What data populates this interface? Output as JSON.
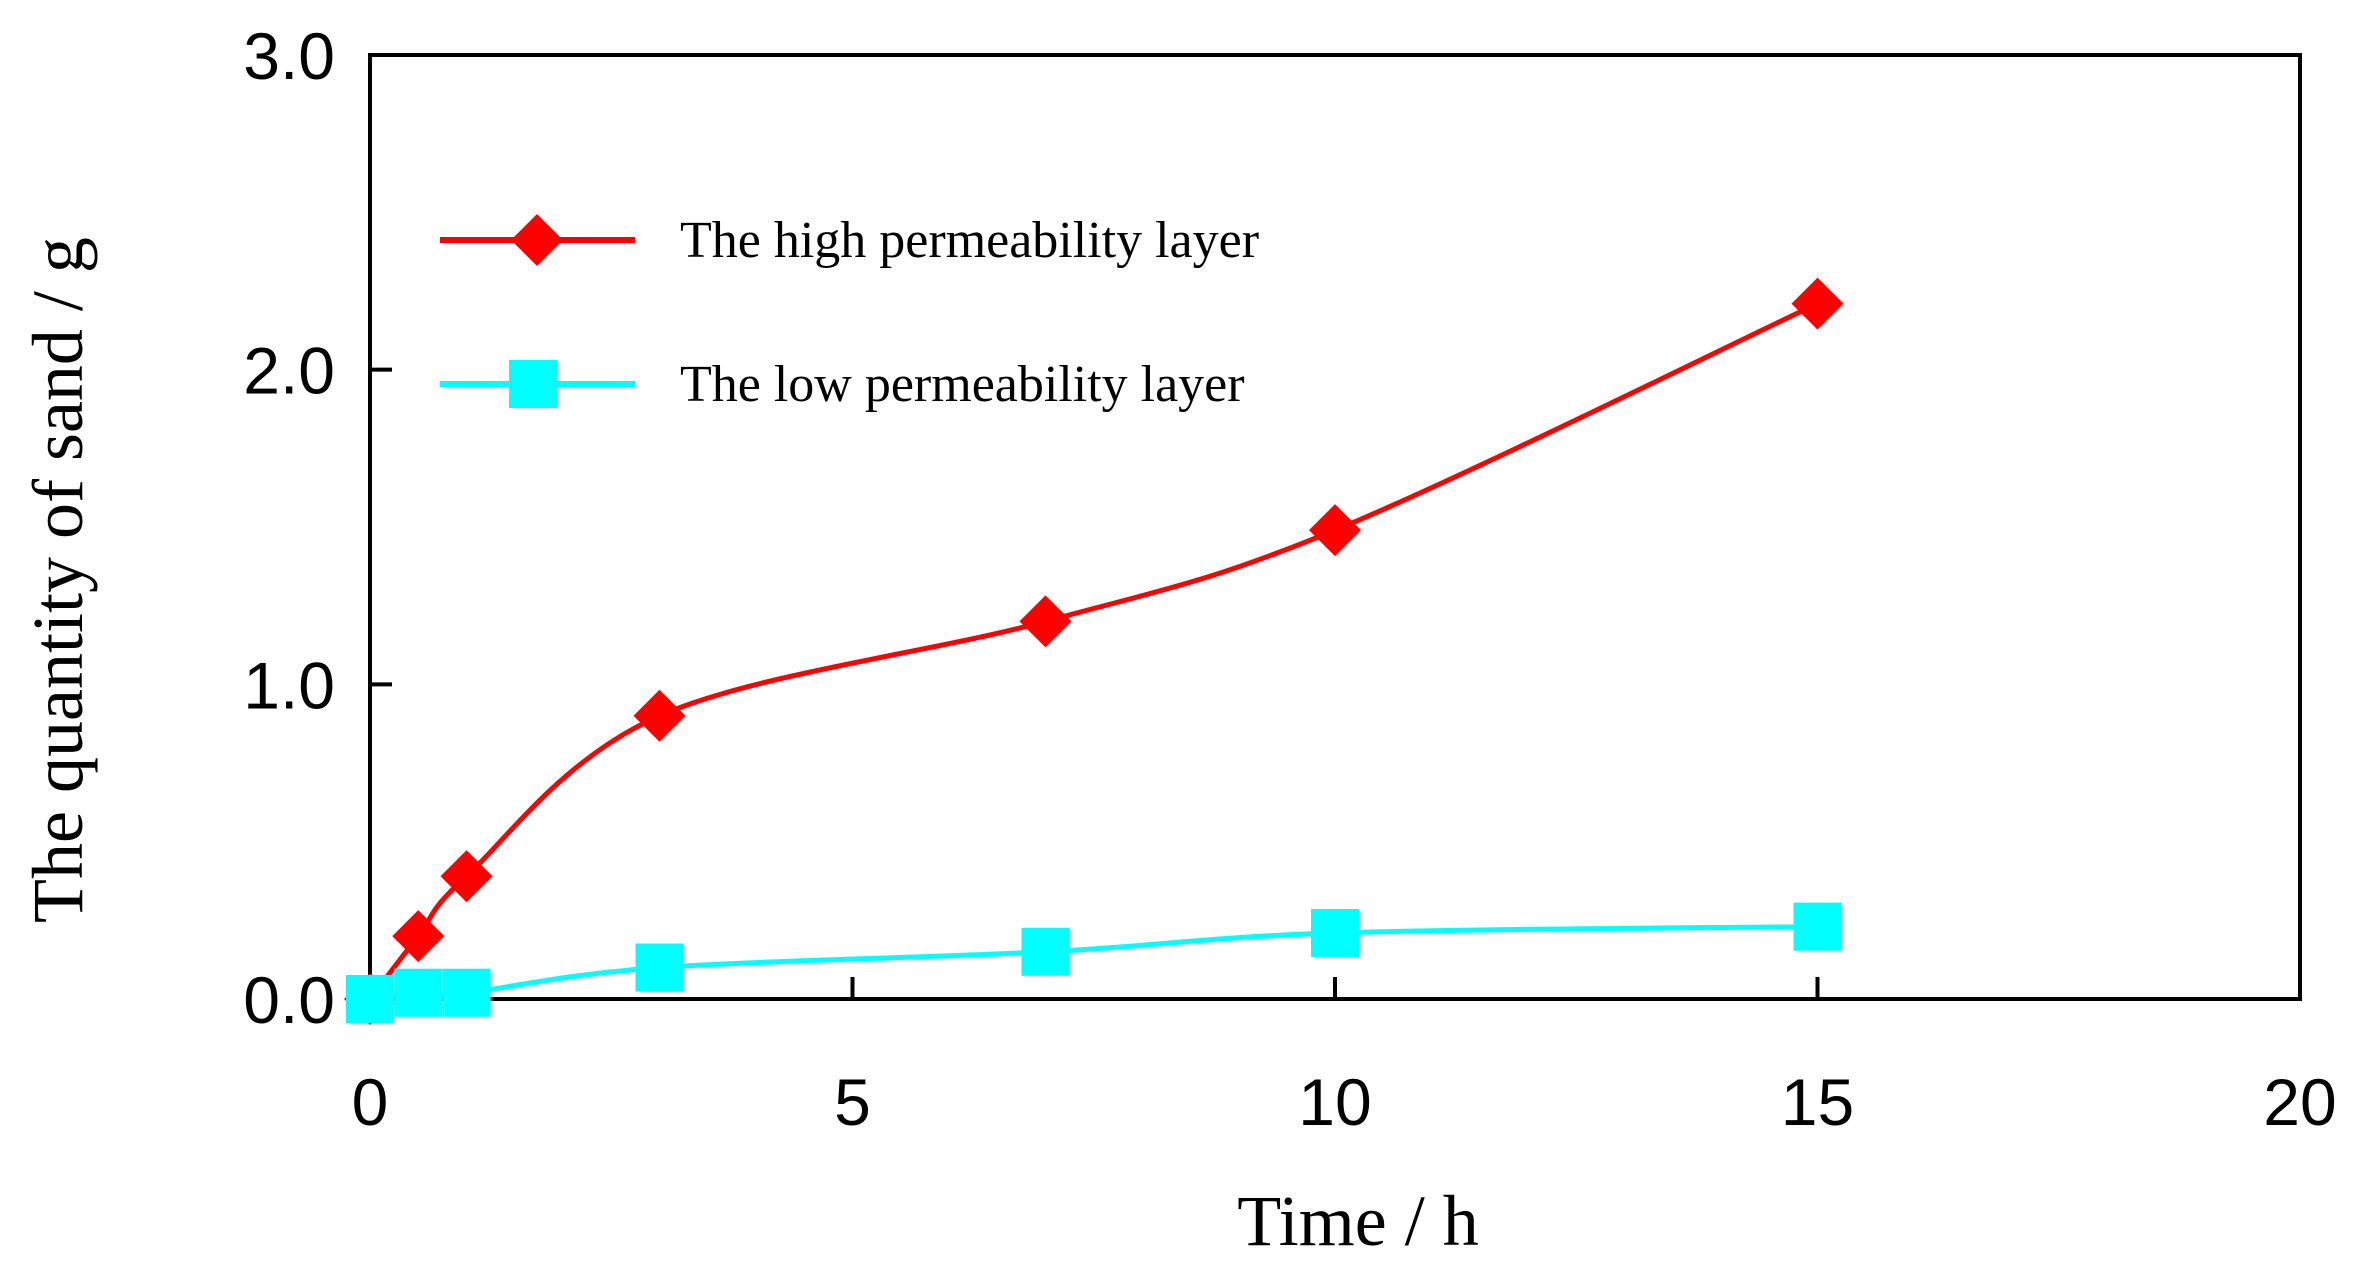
{
  "chart_data": {
    "type": "line",
    "title": "",
    "xlabel": "Time / h",
    "ylabel": "The quantity of sand / g",
    "xlim": [
      0,
      20
    ],
    "ylim": [
      0,
      3.0
    ],
    "xticks": [
      0,
      5,
      10,
      15,
      20
    ],
    "xtick_labels": [
      "0",
      "5",
      "10",
      "15",
      "20"
    ],
    "yticks": [
      0,
      1.0,
      2.0,
      3.0
    ],
    "ytick_labels": [
      "0.0",
      "1.0",
      "2.0",
      "3.0"
    ],
    "grid": false,
    "legend_position": "top-left",
    "series": [
      {
        "name": "The high permeability layer",
        "color": "#ff0000",
        "marker": "diamond",
        "x": [
          0,
          0.5,
          1,
          3,
          7,
          10,
          15
        ],
        "y": [
          0,
          0.2,
          0.39,
          0.9,
          1.2,
          1.49,
          2.21
        ]
      },
      {
        "name": "The low permeability layer",
        "color": "#00ffff",
        "marker": "square",
        "x": [
          0,
          0.5,
          1,
          3,
          7,
          10,
          15
        ],
        "y": [
          0,
          0.02,
          0.02,
          0.1,
          0.15,
          0.21,
          0.23
        ]
      }
    ]
  }
}
